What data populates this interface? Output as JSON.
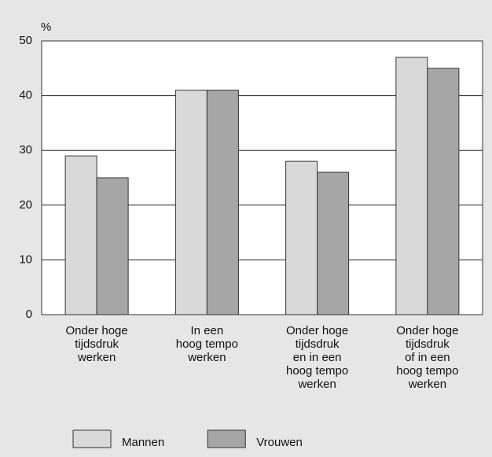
{
  "chart_data": {
    "type": "bar",
    "y_label": "%",
    "categories": [
      "Onder hoge\ntijdsdruk\nwerken",
      "In een\nhoog tempo\nwerken",
      "Onder hoge\ntijdsdruk\nen in een\nhoog tempo\nwerken",
      "Onder hoge\ntijdsdruk\nof in een\nhoog tempo\nwerken"
    ],
    "series": [
      {
        "name": "Mannen",
        "color": "#d9d9d9",
        "values": [
          29,
          41,
          28,
          47
        ]
      },
      {
        "name": "Vrouwen",
        "color": "#a6a6a6",
        "values": [
          25,
          41,
          26,
          45
        ]
      }
    ],
    "ylim": [
      0,
      50
    ],
    "yticks": [
      0,
      10,
      20,
      30,
      40,
      50
    ],
    "grid": true,
    "legend": "bottom-left"
  }
}
